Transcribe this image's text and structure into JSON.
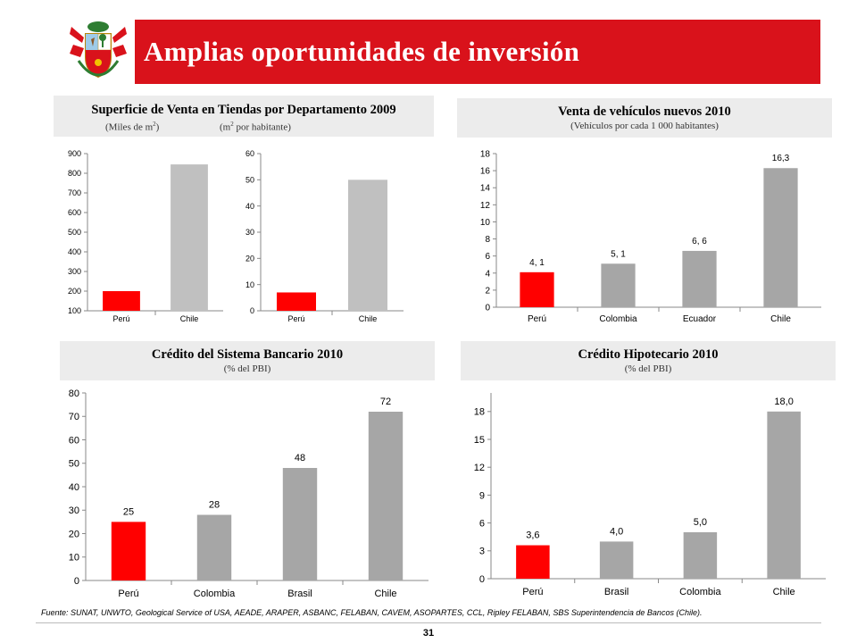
{
  "slide": {
    "title": "Amplias oportunidades de inversión",
    "accent": "#d9121b",
    "source": "Fuente: SUNAT, UNWTO, Geological Service of USA,  AEADE, ARAPER, ASBANC, FELABAN, CAVEM, ASOPARTES, CCL,  Ripley FELABAN, SBS Superintendencia de Bancos (Chile).",
    "page_number": "31"
  },
  "panels": {
    "superficie": {
      "title": "Superficie de Venta en Tiendas por Departamento 2009",
      "sub_left": "(Miles de m",
      "sub_left_sup": "2",
      "sub_left_end": ")",
      "sub_right": "(m",
      "sub_right_sup": "2",
      "sub_right_end": " por habitante)"
    },
    "vehiculos": {
      "title": "Venta de vehículos nuevos 2010",
      "sub": "(Vehículos por cada 1 000 habitantes)"
    },
    "credito": {
      "title": "Crédito del Sistema Bancario 2010",
      "sub": "(% del PBI)"
    },
    "hipotecario": {
      "title": "Crédito Hipotecario 2010",
      "sub": "(% del PBI)"
    }
  },
  "colors": {
    "peru": "#ff0000",
    "others": "#a6a6a6",
    "chile_light": "#c0c0c0"
  },
  "chart_data": [
    {
      "id": "superficie-miles",
      "type": "bar",
      "categories": [
        "Perú",
        "Chile"
      ],
      "values": [
        200,
        845
      ],
      "ylim": [
        100,
        900
      ],
      "yticks": [
        100,
        200,
        300,
        400,
        500,
        600,
        700,
        800,
        900
      ],
      "show_labels": false,
      "grid": false
    },
    {
      "id": "superficie-hab",
      "type": "bar",
      "categories": [
        "Perú",
        "Chile"
      ],
      "values": [
        7,
        50
      ],
      "ylim": [
        0,
        60
      ],
      "yticks": [
        0,
        10,
        20,
        30,
        40,
        50,
        60
      ],
      "show_labels": false,
      "grid": false
    },
    {
      "id": "vehiculos",
      "type": "bar",
      "categories": [
        "Perú",
        "Colombia",
        "Ecuador",
        "Chile"
      ],
      "values": [
        4.1,
        5.1,
        6.6,
        16.3
      ],
      "labels": [
        "4, 1",
        "5, 1",
        "6, 6",
        "16,3"
      ],
      "ylim": [
        0,
        18
      ],
      "yticks": [
        0,
        2,
        4,
        6,
        8,
        10,
        12,
        14,
        16,
        18
      ],
      "show_labels": true,
      "grid": false
    },
    {
      "id": "credito",
      "type": "bar",
      "categories": [
        "Perú",
        "Colombia",
        "Brasil",
        "Chile"
      ],
      "values": [
        25,
        28,
        48,
        72
      ],
      "labels": [
        "25",
        "28",
        "48",
        "72"
      ],
      "ylim": [
        0,
        80
      ],
      "yticks": [
        0,
        10,
        20,
        30,
        40,
        50,
        60,
        70,
        80
      ],
      "show_labels": true,
      "grid": false
    },
    {
      "id": "hipotecario",
      "type": "bar",
      "categories": [
        "Perú",
        "Brasil",
        "Colombia",
        "Chile"
      ],
      "values": [
        3.6,
        4.0,
        5.0,
        18.0
      ],
      "labels": [
        "3,6",
        "4,0",
        "5,0",
        "18,0"
      ],
      "ylim": [
        0,
        20
      ],
      "yticks": [
        0,
        3,
        6,
        9,
        12,
        15,
        18
      ],
      "show_labels": true,
      "grid": false
    }
  ]
}
